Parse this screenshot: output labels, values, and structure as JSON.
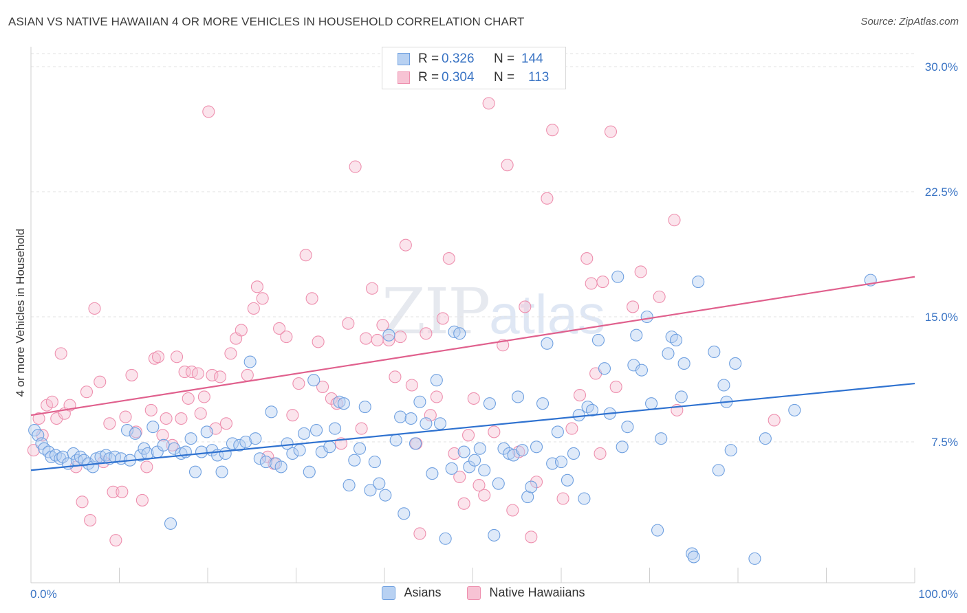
{
  "title": "ASIAN VS NATIVE HAWAIIAN 4 OR MORE VEHICLES IN HOUSEHOLD CORRELATION CHART",
  "source": "Source: ZipAtlas.com",
  "watermark": {
    "zip": "ZIP",
    "atlas": "atlas"
  },
  "legend_top": [
    {
      "r_label": "R =",
      "r": "0.326",
      "n_label": "N =",
      "n": "144"
    },
    {
      "r_label": "R =",
      "r": "0.304",
      "n_label": "N =",
      "n": "113"
    }
  ],
  "legend_bottom": [
    "Asians",
    "Native Hawaiians"
  ],
  "colors": {
    "asians": "#6fa0e0",
    "asians_fill": "#b8d1f2",
    "asians_line": "#2f72d0",
    "nh": "#ee8fae",
    "nh_fill": "#f7c3d4",
    "nh_line": "#e0608d"
  },
  "chart_data": {
    "type": "scatter",
    "ylabel": "4 or more Vehicles in Household",
    "xlim": [
      0,
      100
    ],
    "ylim": [
      0,
      30
    ],
    "x_tick_labels": [
      "0.0%",
      "100.0%"
    ],
    "y_ticks": [
      7.5,
      15,
      22.5,
      30
    ],
    "y_tick_labels": [
      "7.5%",
      "15.0%",
      "22.5%",
      "30.0%"
    ],
    "grid": true,
    "series": [
      {
        "name": "Asians",
        "trend": [
          [
            0,
            5.8
          ],
          [
            100,
            11.0
          ]
        ],
        "points": [
          [
            0.4,
            8.2
          ],
          [
            0.8,
            7.9
          ],
          [
            1.2,
            7.4
          ],
          [
            1.5,
            7.1
          ],
          [
            2.0,
            6.9
          ],
          [
            2.3,
            6.6
          ],
          [
            2.8,
            6.7
          ],
          [
            3.3,
            6.5
          ],
          [
            3.6,
            6.6
          ],
          [
            4.2,
            6.2
          ],
          [
            4.8,
            6.8
          ],
          [
            5.2,
            6.4
          ],
          [
            5.6,
            6.6
          ],
          [
            6.0,
            6.4
          ],
          [
            6.5,
            6.2
          ],
          [
            7.0,
            6.0
          ],
          [
            7.4,
            6.5
          ],
          [
            7.9,
            6.6
          ],
          [
            8.5,
            6.7
          ],
          [
            8.9,
            6.5
          ],
          [
            9.5,
            6.6
          ],
          [
            10.2,
            6.5
          ],
          [
            10.9,
            8.2
          ],
          [
            11.2,
            6.4
          ],
          [
            11.8,
            8.0
          ],
          [
            12.4,
            6.7
          ],
          [
            12.8,
            7.1
          ],
          [
            13.2,
            6.8
          ],
          [
            13.8,
            8.4
          ],
          [
            14.3,
            6.9
          ],
          [
            15.0,
            7.3
          ],
          [
            15.8,
            2.6
          ],
          [
            16.2,
            7.1
          ],
          [
            17.0,
            6.8
          ],
          [
            17.5,
            6.9
          ],
          [
            18.1,
            7.7
          ],
          [
            18.6,
            5.7
          ],
          [
            19.3,
            6.9
          ],
          [
            19.9,
            8.1
          ],
          [
            20.5,
            7.0
          ],
          [
            21.1,
            6.7
          ],
          [
            21.6,
            5.7
          ],
          [
            22.0,
            6.8
          ],
          [
            22.8,
            7.4
          ],
          [
            23.6,
            7.3
          ],
          [
            24.3,
            7.5
          ],
          [
            24.8,
            12.3
          ],
          [
            25.4,
            7.7
          ],
          [
            25.9,
            6.5
          ],
          [
            26.6,
            6.3
          ],
          [
            27.2,
            9.3
          ],
          [
            27.7,
            6.2
          ],
          [
            28.3,
            6.0
          ],
          [
            29.0,
            7.4
          ],
          [
            29.6,
            6.8
          ],
          [
            30.4,
            7.0
          ],
          [
            30.9,
            8.0
          ],
          [
            31.5,
            5.7
          ],
          [
            32.0,
            11.2
          ],
          [
            32.3,
            8.2
          ],
          [
            32.9,
            6.9
          ],
          [
            33.8,
            7.2
          ],
          [
            34.4,
            8.3
          ],
          [
            34.9,
            9.9
          ],
          [
            35.4,
            9.8
          ],
          [
            36.0,
            4.9
          ],
          [
            36.6,
            6.4
          ],
          [
            37.2,
            7.1
          ],
          [
            37.8,
            9.6
          ],
          [
            38.4,
            4.6
          ],
          [
            38.9,
            6.3
          ],
          [
            39.4,
            5.0
          ],
          [
            40.1,
            4.3
          ],
          [
            40.5,
            13.9
          ],
          [
            41.3,
            7.6
          ],
          [
            41.8,
            9.0
          ],
          [
            42.2,
            3.2
          ],
          [
            43.0,
            8.9
          ],
          [
            43.5,
            7.4
          ],
          [
            44.0,
            9.9
          ],
          [
            44.7,
            8.6
          ],
          [
            45.4,
            5.6
          ],
          [
            45.9,
            11.2
          ],
          [
            46.3,
            8.6
          ],
          [
            46.9,
            1.7
          ],
          [
            47.6,
            5.9
          ],
          [
            47.9,
            14.1
          ],
          [
            48.5,
            14.0
          ],
          [
            49.0,
            6.9
          ],
          [
            49.6,
            6.0
          ],
          [
            50.2,
            6.4
          ],
          [
            50.8,
            7.1
          ],
          [
            51.3,
            5.8
          ],
          [
            51.9,
            9.8
          ],
          [
            52.4,
            1.9
          ],
          [
            52.9,
            5.0
          ],
          [
            53.5,
            7.1
          ],
          [
            54.1,
            6.8
          ],
          [
            54.6,
            6.7
          ],
          [
            55.1,
            10.2
          ],
          [
            55.6,
            7.0
          ],
          [
            56.2,
            4.2
          ],
          [
            56.6,
            4.8
          ],
          [
            57.2,
            7.2
          ],
          [
            57.9,
            9.8
          ],
          [
            58.4,
            13.4
          ],
          [
            59.0,
            6.2
          ],
          [
            59.6,
            8.1
          ],
          [
            60.0,
            6.3
          ],
          [
            60.7,
            5.2
          ],
          [
            61.4,
            6.8
          ],
          [
            62.0,
            9.1
          ],
          [
            62.6,
            4.1
          ],
          [
            63.0,
            9.6
          ],
          [
            63.5,
            9.4
          ],
          [
            64.2,
            13.6
          ],
          [
            64.9,
            11.9
          ],
          [
            65.5,
            9.2
          ],
          [
            66.4,
            17.4
          ],
          [
            66.9,
            7.2
          ],
          [
            67.5,
            8.4
          ],
          [
            68.2,
            12.1
          ],
          [
            68.5,
            13.9
          ],
          [
            69.1,
            11.8
          ],
          [
            69.7,
            15.0
          ],
          [
            70.2,
            9.8
          ],
          [
            70.9,
            2.2
          ],
          [
            71.3,
            7.7
          ],
          [
            72.1,
            12.8
          ],
          [
            72.5,
            13.8
          ],
          [
            73.0,
            13.6
          ],
          [
            73.6,
            10.2
          ],
          [
            73.9,
            12.2
          ],
          [
            74.8,
            0.8
          ],
          [
            75.0,
            0.6
          ],
          [
            75.5,
            17.1
          ],
          [
            77.3,
            12.9
          ],
          [
            77.8,
            5.8
          ],
          [
            78.4,
            10.9
          ],
          [
            78.7,
            9.9
          ],
          [
            79.2,
            7.0
          ],
          [
            79.7,
            12.2
          ],
          [
            81.9,
            0.5
          ],
          [
            83.1,
            7.7
          ],
          [
            86.4,
            9.4
          ],
          [
            95.0,
            17.2
          ]
        ]
      },
      {
        "name": "Native Hawaiians",
        "trend": [
          [
            0,
            9.1
          ],
          [
            100,
            17.4
          ]
        ],
        "points": [
          [
            0.3,
            7.0
          ],
          [
            0.9,
            8.9
          ],
          [
            1.3,
            7.9
          ],
          [
            1.8,
            9.7
          ],
          [
            2.4,
            9.9
          ],
          [
            2.9,
            8.9
          ],
          [
            3.4,
            12.8
          ],
          [
            3.8,
            9.2
          ],
          [
            4.4,
            9.7
          ],
          [
            5.1,
            6.0
          ],
          [
            5.8,
            3.9
          ],
          [
            6.3,
            10.5
          ],
          [
            6.7,
            2.8
          ],
          [
            7.2,
            15.5
          ],
          [
            7.8,
            11.1
          ],
          [
            8.2,
            6.3
          ],
          [
            8.9,
            8.6
          ],
          [
            9.3,
            4.5
          ],
          [
            9.6,
            1.6
          ],
          [
            10.3,
            4.5
          ],
          [
            10.7,
            9.0
          ],
          [
            11.4,
            11.5
          ],
          [
            11.9,
            8.1
          ],
          [
            12.6,
            4.0
          ],
          [
            13.1,
            6.0
          ],
          [
            13.6,
            9.4
          ],
          [
            14.0,
            12.5
          ],
          [
            14.4,
            12.6
          ],
          [
            14.9,
            7.9
          ],
          [
            15.3,
            8.9
          ],
          [
            16.0,
            7.3
          ],
          [
            16.5,
            12.6
          ],
          [
            17.0,
            8.9
          ],
          [
            17.4,
            11.7
          ],
          [
            17.8,
            10.1
          ],
          [
            18.2,
            11.7
          ],
          [
            18.9,
            11.6
          ],
          [
            19.2,
            9.2
          ],
          [
            19.6,
            10.2
          ],
          [
            20.1,
            27.3
          ],
          [
            20.5,
            11.5
          ],
          [
            20.9,
            8.3
          ],
          [
            21.4,
            11.4
          ],
          [
            22.1,
            8.6
          ],
          [
            22.6,
            12.8
          ],
          [
            23.2,
            13.7
          ],
          [
            23.8,
            14.2
          ],
          [
            24.5,
            11.5
          ],
          [
            25.2,
            15.5
          ],
          [
            25.6,
            16.8
          ],
          [
            26.2,
            16.1
          ],
          [
            26.8,
            6.6
          ],
          [
            27.5,
            6.2
          ],
          [
            28.1,
            14.3
          ],
          [
            28.9,
            13.8
          ],
          [
            29.6,
            9.1
          ],
          [
            30.3,
            11.0
          ],
          [
            31.1,
            18.7
          ],
          [
            31.8,
            16.1
          ],
          [
            32.5,
            13.5
          ],
          [
            33.0,
            10.8
          ],
          [
            34.0,
            10.1
          ],
          [
            34.6,
            9.8
          ],
          [
            35.1,
            7.4
          ],
          [
            35.9,
            14.6
          ],
          [
            36.7,
            24.0
          ],
          [
            37.4,
            8.3
          ],
          [
            37.9,
            13.7
          ],
          [
            38.6,
            16.7
          ],
          [
            39.2,
            13.6
          ],
          [
            39.8,
            14.5
          ],
          [
            40.5,
            13.6
          ],
          [
            41.2,
            11.4
          ],
          [
            41.8,
            13.8
          ],
          [
            42.4,
            19.3
          ],
          [
            43.1,
            10.9
          ],
          [
            43.6,
            7.4
          ],
          [
            44.0,
            2.0
          ],
          [
            44.7,
            14.0
          ],
          [
            45.2,
            9.1
          ],
          [
            45.9,
            10.2
          ],
          [
            46.6,
            14.9
          ],
          [
            47.3,
            18.5
          ],
          [
            47.9,
            6.8
          ],
          [
            48.5,
            5.4
          ],
          [
            49.0,
            3.8
          ],
          [
            49.5,
            7.9
          ],
          [
            50.1,
            10.1
          ],
          [
            50.7,
            4.9
          ],
          [
            51.3,
            4.3
          ],
          [
            51.8,
            27.8
          ],
          [
            52.4,
            8.1
          ],
          [
            52.9,
            29.5
          ],
          [
            53.4,
            13.3
          ],
          [
            53.9,
            24.1
          ],
          [
            54.5,
            3.4
          ],
          [
            55.2,
            6.9
          ],
          [
            55.9,
            15.6
          ],
          [
            56.6,
            1.8
          ],
          [
            57.2,
            5.1
          ],
          [
            58.4,
            22.1
          ],
          [
            59.0,
            26.2
          ],
          [
            60.2,
            4.1
          ],
          [
            61.2,
            8.3
          ],
          [
            62.1,
            10.3
          ],
          [
            62.9,
            18.5
          ],
          [
            63.4,
            17.0
          ],
          [
            63.9,
            11.6
          ],
          [
            64.4,
            6.8
          ],
          [
            64.7,
            17.1
          ],
          [
            65.6,
            26.1
          ],
          [
            66.2,
            10.8
          ],
          [
            68.1,
            15.6
          ],
          [
            69.0,
            17.7
          ],
          [
            71.1,
            16.2
          ],
          [
            72.8,
            20.8
          ],
          [
            73.1,
            9.4
          ],
          [
            84.1,
            8.8
          ]
        ]
      }
    ]
  }
}
